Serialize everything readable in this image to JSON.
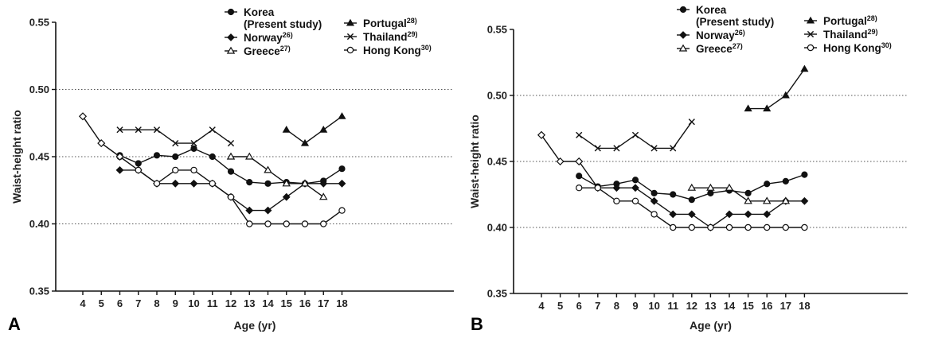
{
  "chart_data": [
    {
      "type": "line",
      "panel_label": "A",
      "xlabel": "Age (yr)",
      "ylabel": "Waist-height ratio",
      "ylim": [
        0.35,
        0.55
      ],
      "yticks": [
        "0.35",
        "0.40",
        "0.45",
        "0.50",
        "0.55"
      ],
      "x": [
        4,
        5,
        6,
        7,
        8,
        9,
        10,
        11,
        12,
        13,
        14,
        15,
        16,
        17,
        18
      ],
      "grid": "horizontal dotted at 0.40, 0.45, 0.50",
      "legend": "top",
      "series": [
        {
          "name": "Korea (Present study)",
          "marker": "circle-filled",
          "points": [
            [
              6,
              0.451
            ],
            [
              7,
              0.445
            ],
            [
              8,
              0.451
            ],
            [
              9,
              0.45
            ],
            [
              10,
              0.456
            ],
            [
              11,
              0.45
            ],
            [
              12,
              0.439
            ],
            [
              13,
              0.431
            ],
            [
              14,
              0.43
            ],
            [
              15,
              0.431
            ],
            [
              16,
              0.43
            ],
            [
              17,
              0.432
            ],
            [
              18,
              0.441
            ]
          ]
        },
        {
          "name": "Norway",
          "ref": "26)",
          "marker": "diamond-filled",
          "points": [
            [
              6,
              0.44
            ],
            [
              7,
              0.44
            ],
            [
              8,
              0.43
            ],
            [
              9,
              0.43
            ],
            [
              10,
              0.43
            ],
            [
              11,
              0.43
            ],
            [
              12,
              0.42
            ],
            [
              13,
              0.41
            ],
            [
              14,
              0.41
            ],
            [
              15,
              0.42
            ],
            [
              16,
              0.43
            ],
            [
              17,
              0.43
            ],
            [
              18,
              0.43
            ]
          ]
        },
        {
          "name": "Greece",
          "ref": "27)",
          "marker": "triangle-open",
          "points": [
            [
              12,
              0.45
            ],
            [
              13,
              0.45
            ],
            [
              14,
              0.44
            ],
            [
              15,
              0.43
            ],
            [
              16,
              0.43
            ],
            [
              17,
              0.42
            ]
          ]
        },
        {
          "name": "Portugal",
          "ref": "28)",
          "marker": "triangle-filled",
          "points": [
            [
              15,
              0.47
            ],
            [
              16,
              0.46
            ],
            [
              17,
              0.47
            ],
            [
              18,
              0.48
            ]
          ]
        },
        {
          "name": "Thailand",
          "ref": "29)",
          "marker": "x",
          "points": [
            [
              6,
              0.47
            ],
            [
              7,
              0.47
            ],
            [
              8,
              0.47
            ],
            [
              9,
              0.46
            ],
            [
              10,
              0.46
            ],
            [
              11,
              0.47
            ],
            [
              12,
              0.46
            ]
          ]
        },
        {
          "name": "Hong Kong",
          "ref": "30)",
          "marker": "circle-open",
          "points": [
            [
              6,
              0.45
            ],
            [
              7,
              0.44
            ],
            [
              8,
              0.43
            ],
            [
              9,
              0.44
            ],
            [
              10,
              0.44
            ],
            [
              11,
              0.43
            ],
            [
              12,
              0.42
            ],
            [
              13,
              0.4
            ],
            [
              14,
              0.4
            ],
            [
              15,
              0.4
            ],
            [
              16,
              0.4
            ],
            [
              17,
              0.4
            ],
            [
              18,
              0.41
            ]
          ]
        },
        {
          "name": "",
          "marker": "diamond-open",
          "points": [
            [
              4,
              0.48
            ],
            [
              5,
              0.46
            ],
            [
              6,
              0.45
            ]
          ]
        }
      ]
    },
    {
      "type": "line",
      "panel_label": "B",
      "xlabel": "Age (yr)",
      "ylabel": "Waist-height ratio",
      "ylim": [
        0.35,
        0.55
      ],
      "yticks": [
        "0.35",
        "0.40",
        "0.45",
        "0.50",
        "0.55"
      ],
      "x": [
        4,
        5,
        6,
        7,
        8,
        9,
        10,
        11,
        12,
        13,
        14,
        15,
        16,
        17,
        18
      ],
      "grid": "horizontal dotted at 0.40, 0.45, 0.50",
      "legend": "top",
      "series": [
        {
          "name": "Korea (Present study)",
          "marker": "circle-filled",
          "points": [
            [
              6,
              0.439
            ],
            [
              7,
              0.431
            ],
            [
              8,
              0.433
            ],
            [
              9,
              0.436
            ],
            [
              10,
              0.426
            ],
            [
              11,
              0.425
            ],
            [
              12,
              0.421
            ],
            [
              13,
              0.426
            ],
            [
              14,
              0.428
            ],
            [
              15,
              0.426
            ],
            [
              16,
              0.433
            ],
            [
              17,
              0.435
            ],
            [
              18,
              0.44
            ]
          ]
        },
        {
          "name": "Norway",
          "ref": "26)",
          "marker": "diamond-filled",
          "points": [
            [
              6,
              0.45
            ],
            [
              7,
              0.43
            ],
            [
              8,
              0.43
            ],
            [
              9,
              0.43
            ],
            [
              10,
              0.42
            ],
            [
              11,
              0.41
            ],
            [
              12,
              0.41
            ],
            [
              13,
              0.4
            ],
            [
              14,
              0.41
            ],
            [
              15,
              0.41
            ],
            [
              16,
              0.41
            ],
            [
              17,
              0.42
            ],
            [
              18,
              0.42
            ]
          ]
        },
        {
          "name": "Greece",
          "ref": "27)",
          "marker": "triangle-open",
          "points": [
            [
              12,
              0.43
            ],
            [
              13,
              0.43
            ],
            [
              14,
              0.43
            ],
            [
              15,
              0.42
            ],
            [
              16,
              0.42
            ],
            [
              17,
              0.42
            ]
          ]
        },
        {
          "name": "Portugal",
          "ref": "28)",
          "marker": "triangle-filled",
          "points": [
            [
              15,
              0.49
            ],
            [
              16,
              0.49
            ],
            [
              17,
              0.5
            ],
            [
              18,
              0.52
            ]
          ]
        },
        {
          "name": "Thailand",
          "ref": "29)",
          "marker": "x",
          "points": [
            [
              6,
              0.47
            ],
            [
              7,
              0.46
            ],
            [
              8,
              0.46
            ],
            [
              9,
              0.47
            ],
            [
              10,
              0.46
            ],
            [
              11,
              0.46
            ],
            [
              12,
              0.48
            ]
          ]
        },
        {
          "name": "Hong Kong",
          "ref": "30)",
          "marker": "circle-open",
          "points": [
            [
              6,
              0.43
            ],
            [
              7,
              0.43
            ],
            [
              8,
              0.42
            ],
            [
              9,
              0.42
            ],
            [
              10,
              0.41
            ],
            [
              11,
              0.4
            ],
            [
              12,
              0.4
            ],
            [
              13,
              0.4
            ],
            [
              14,
              0.4
            ],
            [
              15,
              0.4
            ],
            [
              16,
              0.4
            ],
            [
              17,
              0.4
            ],
            [
              18,
              0.4
            ]
          ]
        },
        {
          "name": "",
          "marker": "diamond-open",
          "points": [
            [
              4,
              0.47
            ],
            [
              5,
              0.45
            ],
            [
              6,
              0.45
            ]
          ]
        }
      ]
    }
  ]
}
